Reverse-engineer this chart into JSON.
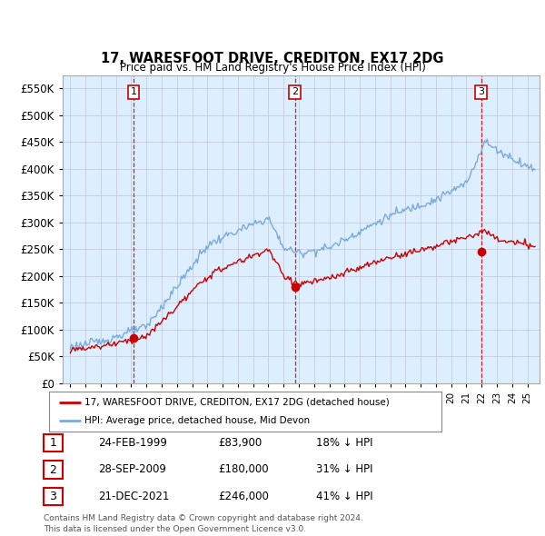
{
  "title": "17, WARESFOOT DRIVE, CREDITON, EX17 2DG",
  "subtitle": "Price paid vs. HM Land Registry's House Price Index (HPI)",
  "legend_line1": "17, WARESFOOT DRIVE, CREDITON, EX17 2DG (detached house)",
  "legend_line2": "HPI: Average price, detached house, Mid Devon",
  "sale_color": "#cc0000",
  "hpi_color": "#7aaadd",
  "vline_color": "#cc0000",
  "chart_bg": "#ddeeff",
  "ylim": [
    0,
    575000
  ],
  "yticks": [
    0,
    50000,
    100000,
    150000,
    200000,
    250000,
    300000,
    350000,
    400000,
    450000,
    500000,
    550000
  ],
  "sales": [
    {
      "date_num": 1999.15,
      "price": 83900,
      "label": "1"
    },
    {
      "date_num": 2009.74,
      "price": 180000,
      "label": "2"
    },
    {
      "date_num": 2021.97,
      "price": 246000,
      "label": "3"
    }
  ],
  "table_rows": [
    {
      "num": "1",
      "date": "24-FEB-1999",
      "price": "£83,900",
      "hpi": "18% ↓ HPI"
    },
    {
      "num": "2",
      "date": "28-SEP-2009",
      "price": "£180,000",
      "hpi": "31% ↓ HPI"
    },
    {
      "num": "3",
      "date": "21-DEC-2021",
      "price": "£246,000",
      "hpi": "41% ↓ HPI"
    }
  ],
  "footnote": "Contains HM Land Registry data © Crown copyright and database right 2024.\nThis data is licensed under the Open Government Licence v3.0.",
  "background_color": "#ffffff"
}
